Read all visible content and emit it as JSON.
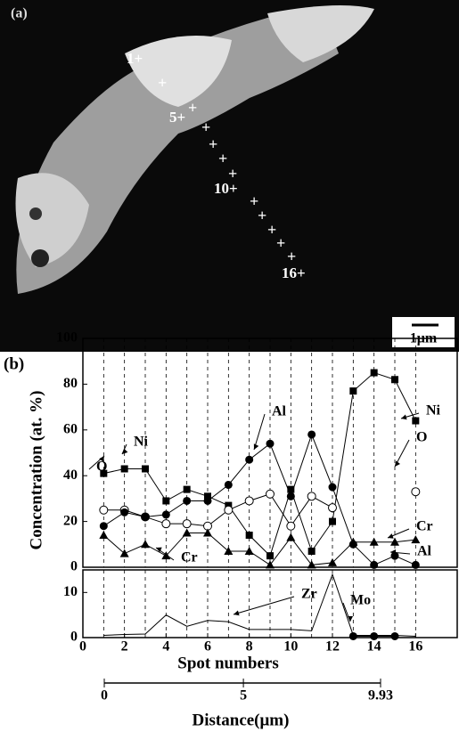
{
  "panel_labels": [
    "(a)",
    "(b)"
  ],
  "image": {
    "markers": [
      "1+",
      "5+",
      "10+",
      "16+"
    ],
    "scale_bar": "1μm"
  },
  "chart_data": [
    {
      "type": "line",
      "ylabel": "Concentration (at. %)",
      "x": [
        1,
        2,
        3,
        4,
        5,
        6,
        7,
        8,
        9,
        10,
        11,
        12,
        13,
        14,
        15,
        16
      ],
      "xlim": [
        0,
        18
      ],
      "ylim": [
        0,
        100
      ],
      "yticks": [
        0,
        20,
        40,
        60,
        80,
        100
      ],
      "grid": "vertical-dashed",
      "series": [
        {
          "marker": "square",
          "color": "#000000",
          "values": [
            41,
            43,
            43,
            29,
            34,
            31,
            27,
            14,
            5,
            34,
            7,
            20,
            77,
            85,
            82,
            64
          ]
        },
        {
          "marker": "open-circle",
          "color": "#000000",
          "values": [
            25,
            25,
            22,
            19,
            19,
            18,
            25,
            29,
            32,
            18,
            31,
            26,
            null,
            null,
            null,
            33
          ]
        },
        {
          "marker": "circle",
          "color": "#000000",
          "values": [
            18,
            24,
            22,
            23,
            29,
            29,
            36,
            47,
            54,
            31,
            58,
            35,
            10,
            1,
            5,
            1
          ]
        },
        {
          "marker": "triangle",
          "color": "#000000",
          "values": [
            14,
            6,
            10,
            5,
            15,
            15,
            7,
            7,
            1,
            13,
            1,
            2,
            11,
            11,
            11,
            12
          ]
        }
      ],
      "annotations": [
        "Ni",
        "Ni",
        "Al",
        "O",
        "O",
        "Cr",
        "Cr",
        "Al"
      ]
    },
    {
      "type": "line",
      "xlabel": "Spot numbers",
      "x": [
        1,
        2,
        3,
        4,
        5,
        6,
        7,
        8,
        9,
        10,
        11,
        12,
        13,
        14,
        15,
        16
      ],
      "xlim": [
        0,
        18
      ],
      "xticks": [
        0,
        2,
        4,
        6,
        8,
        10,
        12,
        14,
        16
      ],
      "ylim": [
        0,
        15
      ],
      "yticks": [
        0,
        10
      ],
      "grid": "vertical-dashed",
      "series": [
        {
          "marker": "line",
          "color": "#000000",
          "values": [
            0.5,
            0.7,
            0.8,
            5,
            2.5,
            3.8,
            3.5,
            1.8,
            1.8,
            1.8,
            1.5,
            14,
            0.5,
            0.5,
            0.5,
            0.3
          ]
        },
        {
          "marker": "circle",
          "color": "#000000",
          "values": [
            null,
            null,
            null,
            null,
            null,
            null,
            null,
            null,
            null,
            null,
            null,
            null,
            0.3,
            0.3,
            0.3,
            null
          ]
        }
      ],
      "annotations": [
        "Zr",
        "Mo"
      ]
    },
    {
      "type": "axis",
      "xlabel": "Distance(μm)",
      "xlim": [
        0,
        9.93
      ],
      "xticks": [
        0,
        5,
        9.93
      ]
    }
  ]
}
